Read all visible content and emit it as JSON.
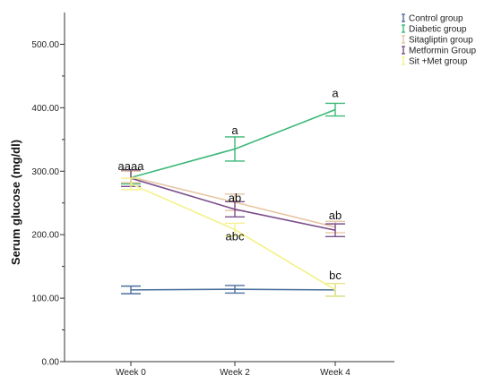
{
  "chart_data": {
    "type": "line",
    "title": "",
    "xlabel": "",
    "ylabel": "Serum glucose (mg/dl)",
    "categories": [
      "Week 0",
      "Week 2",
      "Week 4"
    ],
    "ylim": [
      0,
      550
    ],
    "yticks": [
      "0.00",
      "100.00",
      "200.00",
      "300.00",
      "400.00",
      "500.00"
    ],
    "grid": false,
    "legend_position": "top-right",
    "series": [
      {
        "name": "Control group",
        "color": "#4a6f9c",
        "values": [
          113,
          114,
          113
        ],
        "errors": [
          6,
          6,
          10
        ]
      },
      {
        "name": "Diabetic group",
        "color": "#3cb878",
        "values": [
          290,
          335,
          397
        ],
        "errors": [
          10,
          19,
          10
        ]
      },
      {
        "name": "Sitagliptin group",
        "color": "#e6c6a3",
        "values": [
          291,
          251,
          212
        ],
        "errors": [
          9,
          13,
          9
        ]
      },
      {
        "name": "Metformin Group",
        "color": "#7b4f8c",
        "values": [
          289,
          240,
          207
        ],
        "errors": [
          13,
          12,
          10
        ]
      },
      {
        "name": "Sit +Met group",
        "color": "#f2f28a",
        "values": [
          280,
          208,
          113
        ],
        "errors": [
          9,
          10,
          10
        ]
      }
    ],
    "annotations": [
      {
        "text": "aaaa",
        "category": "Week 0",
        "y": 302
      },
      {
        "text": "a",
        "category": "Week 2",
        "y": 358
      },
      {
        "text": "ab",
        "category": "Week 2",
        "y": 252
      },
      {
        "text": "abc",
        "category": "Week 2",
        "y": 191
      },
      {
        "text": "a",
        "category": "Week 4",
        "y": 417
      },
      {
        "text": "ab",
        "category": "Week 4",
        "y": 224
      },
      {
        "text": "bc",
        "category": "Week 4",
        "y": 130
      }
    ]
  }
}
